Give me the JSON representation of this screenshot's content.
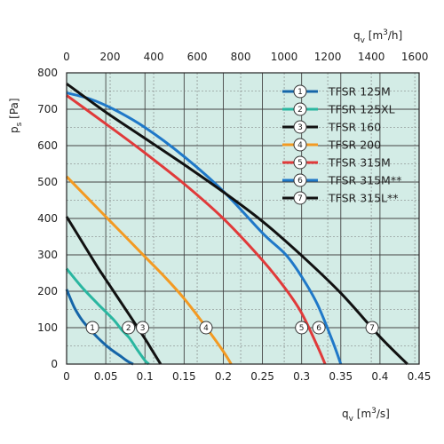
{
  "chart_data": {
    "type": "line",
    "xlabel": "q_v [m³/s]",
    "x2label": "q_v [m³/h]",
    "ylabel": "p_s [Pa]",
    "xlim": [
      0,
      0.45
    ],
    "ylim": [
      0,
      800
    ],
    "x2lim": [
      0,
      1620
    ],
    "x_ticks": [
      "0",
      "0.05",
      "0.1",
      "0.15",
      "0.2",
      "0.25",
      "0.3",
      "0.35",
      "0.4",
      "0.45"
    ],
    "x_tick_values": [
      0,
      0.05,
      0.1,
      0.15,
      0.2,
      0.25,
      0.3,
      0.35,
      0.4,
      0.45
    ],
    "x2_ticks": [
      "0",
      "200",
      "400",
      "600",
      "800",
      "1000",
      "1200",
      "1400",
      "1600"
    ],
    "x2_tick_values": [
      0,
      200,
      400,
      600,
      800,
      1000,
      1200,
      1400,
      1600
    ],
    "y_ticks": [
      "0",
      "100",
      "200",
      "300",
      "400",
      "500",
      "600",
      "700",
      "800"
    ],
    "y_tick_values": [
      0,
      100,
      200,
      300,
      400,
      500,
      600,
      700,
      800
    ],
    "grid": true,
    "legend_position": "top-right",
    "background_color": "#d3ece6",
    "series": [
      {
        "name": "TFSR 125M",
        "marker": "1",
        "color": "#1565a8",
        "x": [
          0,
          0.01,
          0.02,
          0.03,
          0.04,
          0.05,
          0.06,
          0.07,
          0.075,
          0.08,
          0.085
        ],
        "y": [
          205,
          155,
          120,
          95,
          72,
          52,
          35,
          20,
          12,
          5,
          0
        ],
        "marker_at": [
          0.033,
          100
        ]
      },
      {
        "name": "TFSR 125XL",
        "marker": "2",
        "color": "#2ab6a0",
        "x": [
          0,
          0.02,
          0.04,
          0.06,
          0.07,
          0.08,
          0.09,
          0.1,
          0.105
        ],
        "y": [
          262,
          210,
          165,
          122,
          95,
          72,
          40,
          10,
          0
        ],
        "marker_at": [
          0.079,
          100
        ]
      },
      {
        "name": "TFSR 160",
        "marker": "3",
        "color": "#111111",
        "x": [
          0,
          0.02,
          0.04,
          0.06,
          0.08,
          0.1,
          0.11,
          0.12
        ],
        "y": [
          405,
          335,
          265,
          200,
          135,
          70,
          35,
          0
        ],
        "marker_at": [
          0.097,
          100
        ]
      },
      {
        "name": "TFSR 200",
        "marker": "4",
        "color": "#f39a22",
        "x": [
          0,
          0.025,
          0.05,
          0.075,
          0.1,
          0.125,
          0.15,
          0.175,
          0.2,
          0.21
        ],
        "y": [
          515,
          460,
          405,
          350,
          295,
          240,
          180,
          110,
          35,
          0
        ],
        "marker_at": [
          0.178,
          100
        ]
      },
      {
        "name": "TFSR 315M",
        "marker": "5",
        "color": "#e03a3a",
        "x": [
          0,
          0.05,
          0.1,
          0.15,
          0.2,
          0.25,
          0.28,
          0.3,
          0.32,
          0.33
        ],
        "y": [
          738,
          660,
          580,
          495,
          400,
          285,
          205,
          140,
          50,
          0
        ],
        "marker_at": [
          0.3,
          100
        ]
      },
      {
        "name": "TFSR 315M**",
        "marker": "6",
        "color": "#1f78c8",
        "x": [
          0,
          0.03,
          0.06,
          0.1,
          0.15,
          0.2,
          0.25,
          0.28,
          0.3,
          0.32,
          0.34,
          0.35
        ],
        "y": [
          745,
          728,
          700,
          650,
          570,
          475,
          360,
          300,
          240,
          165,
          60,
          0
        ],
        "marker_at": [
          0.322,
          100
        ]
      },
      {
        "name": "TFSR 315L**",
        "marker": "7",
        "color": "#111111",
        "x": [
          0,
          0.05,
          0.1,
          0.15,
          0.2,
          0.25,
          0.3,
          0.35,
          0.4,
          0.435
        ],
        "y": [
          770,
          692,
          620,
          548,
          473,
          392,
          298,
          195,
          75,
          0
        ],
        "marker_at": [
          0.39,
          100
        ]
      }
    ]
  }
}
